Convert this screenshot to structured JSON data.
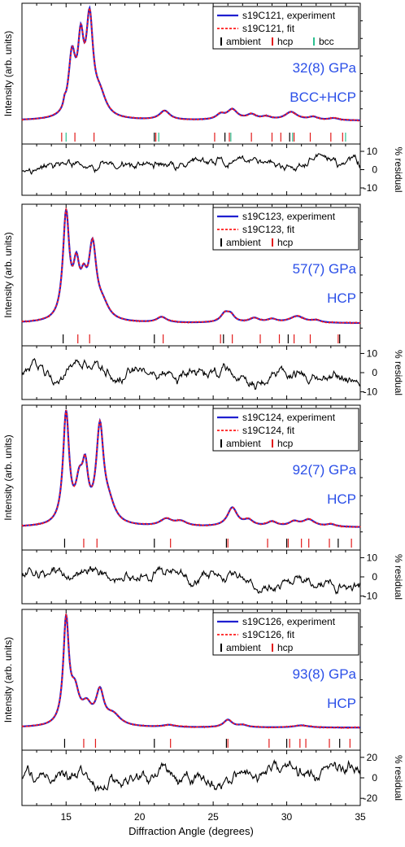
{
  "figure": {
    "xlabel": "Diffraction Angle (degrees)",
    "xticks": [
      "15",
      "20",
      "25",
      "30",
      "35"
    ],
    "ylabel_main": "Intensity (arb. units)",
    "ylabel_residual": "% residual",
    "colors": {
      "experiment": "#1f1fd0",
      "fit": "#ff1a1a",
      "ambient": "#000000",
      "hcp": "#e21b1b",
      "bcc": "#2bbf8f",
      "residual": "#000000",
      "annotation": "#2b4fe8"
    }
  },
  "chart_data": [
    {
      "type": "line",
      "title": "",
      "xlabel": "Diffraction Angle (degrees)",
      "ylabel": "Intensity (arb. units)",
      "xlim": [
        12,
        35
      ],
      "annotation": [
        "32(8) GPa",
        "BCC+HCP"
      ],
      "legend": {
        "position": "top-right",
        "experiment": "s19C121, experiment",
        "fit": "s19C121, fit",
        "ticks": [
          "ambient",
          "hcp",
          "bcc"
        ]
      },
      "baseline": 0.03,
      "peaks": [
        [
          14.9,
          0.06,
          0.09
        ],
        [
          15.4,
          0.58,
          0.28
        ],
        [
          16.0,
          0.66,
          0.24
        ],
        [
          16.6,
          0.92,
          0.28
        ],
        [
          17.3,
          0.2,
          0.5
        ],
        [
          21.7,
          0.09,
          0.42
        ],
        [
          25.5,
          0.05,
          0.35
        ],
        [
          26.3,
          0.1,
          0.42
        ],
        [
          27.6,
          0.05,
          0.4
        ],
        [
          28.6,
          0.03,
          0.4
        ],
        [
          30.3,
          0.08,
          0.5
        ],
        [
          31.8,
          0.03,
          0.4
        ],
        [
          33.2,
          0.02,
          0.4
        ]
      ],
      "tick_marks": {
        "ambient": [
          21.0,
          25.8,
          30.2
        ],
        "hcp": [
          14.7,
          15.6,
          16.9,
          21.1,
          25.1,
          26.1,
          27.6,
          29.0,
          29.6,
          30.5,
          31.6,
          33.0,
          33.8
        ],
        "bcc": [
          15.0,
          21.3,
          26.2,
          30.4,
          34.0
        ]
      },
      "residual": {
        "yticks": [
          -10,
          0,
          10
        ],
        "ylim": [
          -14,
          14
        ]
      }
    },
    {
      "type": "line",
      "title": "",
      "xlabel": "Diffraction Angle (degrees)",
      "ylabel": "Intensity (arb. units)",
      "xlim": [
        12,
        35
      ],
      "annotation": [
        "57(7) GPa",
        "HCP"
      ],
      "legend": {
        "position": "top-right",
        "experiment": "s19C123, experiment",
        "fit": "s19C123, fit",
        "ticks": [
          "ambient",
          "hcp"
        ]
      },
      "baseline": 0.02,
      "peaks": [
        [
          15.0,
          0.95,
          0.26
        ],
        [
          15.7,
          0.42,
          0.26
        ],
        [
          16.2,
          0.25,
          0.25
        ],
        [
          16.8,
          0.65,
          0.32
        ],
        [
          17.5,
          0.12,
          0.5
        ],
        [
          21.5,
          0.05,
          0.4
        ],
        [
          25.8,
          0.08,
          0.35
        ],
        [
          26.2,
          0.06,
          0.3
        ],
        [
          27.8,
          0.04,
          0.4
        ],
        [
          29.0,
          0.03,
          0.4
        ],
        [
          30.7,
          0.06,
          0.6
        ],
        [
          32.0,
          0.02,
          0.4
        ]
      ],
      "tick_marks": {
        "ambient": [
          14.8,
          21.0,
          25.7,
          30.1,
          33.6
        ],
        "hcp": [
          15.8,
          16.6,
          21.6,
          25.5,
          26.3,
          28.2,
          29.5,
          30.5,
          31.6,
          33.5
        ]
      },
      "residual": {
        "yticks": [
          -10,
          0,
          10
        ],
        "ylim": [
          -14,
          14
        ]
      }
    },
    {
      "type": "line",
      "title": "",
      "xlabel": "Diffraction Angle (degrees)",
      "ylabel": "Intensity (arb. units)",
      "xlim": [
        12,
        35
      ],
      "annotation": [
        "92(7) GPa",
        "HCP"
      ],
      "legend": {
        "position": "top-right",
        "experiment": "s19C124, experiment",
        "fit": "s19C124, fit",
        "ticks": [
          "ambient",
          "hcp"
        ]
      },
      "baseline": 0.02,
      "peaks": [
        [
          15.0,
          0.94,
          0.25
        ],
        [
          15.9,
          0.3,
          0.3
        ],
        [
          16.3,
          0.4,
          0.24
        ],
        [
          17.3,
          0.8,
          0.3
        ],
        [
          17.9,
          0.15,
          0.5
        ],
        [
          21.8,
          0.06,
          0.5
        ],
        [
          22.8,
          0.04,
          0.5
        ],
        [
          26.3,
          0.16,
          0.4
        ],
        [
          27.4,
          0.05,
          0.4
        ],
        [
          29.0,
          0.04,
          0.4
        ],
        [
          30.5,
          0.04,
          0.4
        ],
        [
          31.5,
          0.06,
          0.5
        ],
        [
          33.0,
          0.02,
          0.4
        ]
      ],
      "tick_marks": {
        "ambient": [
          14.9,
          21.0,
          25.9,
          30.0,
          33.5
        ],
        "hcp": [
          16.2,
          17.1,
          22.1,
          26.0,
          28.7,
          30.1,
          31.0,
          31.5,
          32.9,
          34.4
        ]
      },
      "residual": {
        "yticks": [
          -10,
          0,
          10
        ],
        "ylim": [
          -14,
          14
        ]
      }
    },
    {
      "type": "line",
      "title": "",
      "xlabel": "Diffraction Angle (degrees)",
      "ylabel": "Intensity (arb. units)",
      "xlim": [
        12,
        35
      ],
      "annotation": [
        "93(8) GPa",
        "HCP"
      ],
      "legend": {
        "position": "top-right",
        "experiment": "s19C126, experiment",
        "fit": "s19C126, fit",
        "ticks": [
          "ambient",
          "hcp"
        ]
      },
      "baseline": 0.02,
      "peaks": [
        [
          15.0,
          0.96,
          0.23
        ],
        [
          15.6,
          0.28,
          0.35
        ],
        [
          16.4,
          0.16,
          0.4
        ],
        [
          17.3,
          0.3,
          0.32
        ],
        [
          18.2,
          0.1,
          0.6
        ],
        [
          22.0,
          0.02,
          0.5
        ],
        [
          26.0,
          0.07,
          0.35
        ],
        [
          27.0,
          0.02,
          0.4
        ],
        [
          31.0,
          0.02,
          0.6
        ]
      ],
      "tick_marks": {
        "ambient": [
          14.9,
          21.0,
          25.9,
          30.0,
          33.6
        ],
        "hcp": [
          16.2,
          17.0,
          22.1,
          26.0,
          28.8,
          30.2,
          30.9,
          31.3,
          32.9,
          34.3
        ]
      },
      "residual": {
        "yticks": [
          -20,
          0,
          20
        ],
        "ylim": [
          -27,
          27
        ]
      }
    }
  ]
}
